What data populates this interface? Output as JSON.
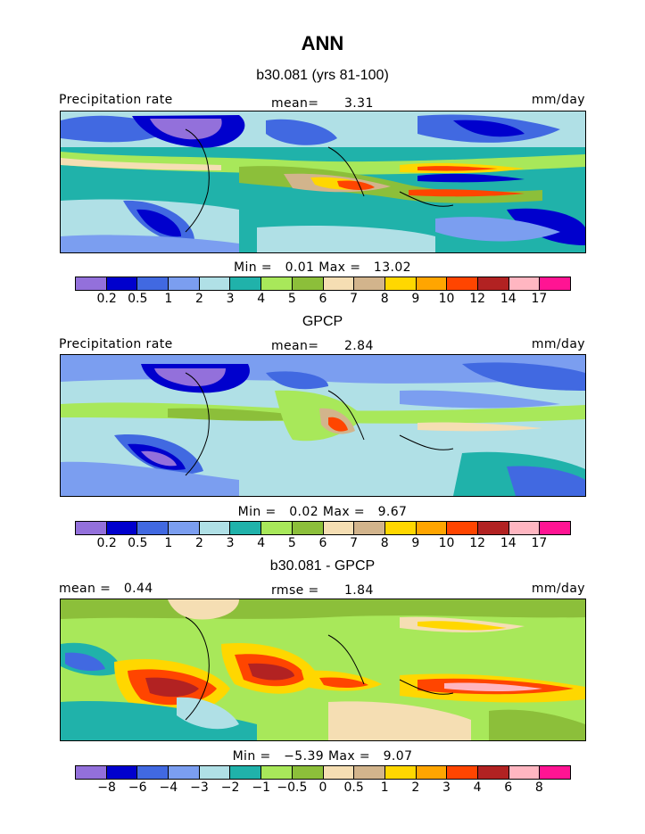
{
  "title": "ANN",
  "subtitle": "b30.081 (yrs 81-100)",
  "palette": [
    "#9370db",
    "#0000cd",
    "#4169e1",
    "#7b9ef0",
    "#b0e0e6",
    "#20b2aa",
    "#a8e85a",
    "#8cbf3a",
    "#f5deb3",
    "#d2b48c",
    "#ffd700",
    "#ffa500",
    "#ff4500",
    "#b22222",
    "#ffb6c1",
    "#ff1493"
  ],
  "panels": [
    {
      "heading": "",
      "label_left": "Precipitation rate",
      "label_center_key": "mean=",
      "label_center_value": "3.31",
      "label_right": "mm/day",
      "min_label": "Min =",
      "min_value": "0.01",
      "max_label": "Max =",
      "max_value": "13.02",
      "ticks": [
        "0.2",
        "0.5",
        "1",
        "2",
        "3",
        "4",
        "5",
        "6",
        "7",
        "8",
        "9",
        "10",
        "12",
        "14",
        "17"
      ]
    },
    {
      "heading": "GPCP",
      "label_left": "Precipitation rate",
      "label_center_key": "mean=",
      "label_center_value": "2.84",
      "label_right": "mm/day",
      "min_label": "Min =",
      "min_value": "0.02",
      "max_label": "Max =",
      "max_value": "9.67",
      "ticks": [
        "0.2",
        "0.5",
        "1",
        "2",
        "3",
        "4",
        "5",
        "6",
        "7",
        "8",
        "9",
        "10",
        "12",
        "14",
        "17"
      ]
    },
    {
      "heading": "b30.081 - GPCP",
      "label_left": "mean =   0.44",
      "label_center_key": "rmse =",
      "label_center_value": "1.84",
      "label_right": "mm/day",
      "min_label": "Min =",
      "min_value": "−5.39",
      "max_label": "Max =",
      "max_value": "9.07",
      "ticks": [
        "−8",
        "−6",
        "−4",
        "−3",
        "−2",
        "−1",
        "−0.5",
        "0",
        "0.5",
        "1",
        "2",
        "3",
        "4",
        "6",
        "8"
      ]
    }
  ]
}
